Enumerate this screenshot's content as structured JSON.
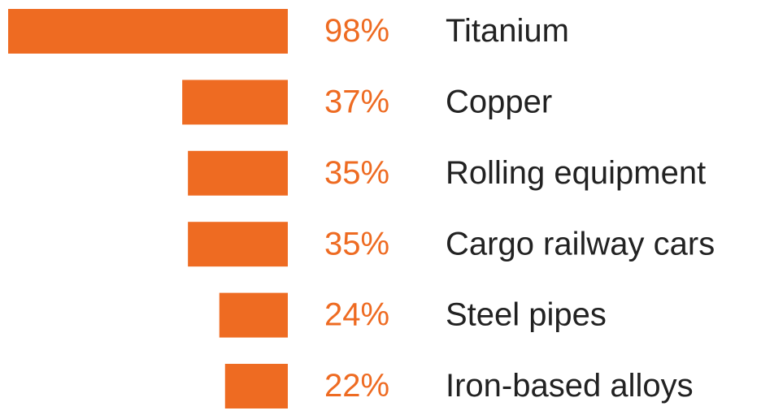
{
  "chart_data": {
    "type": "bar",
    "orientation": "horizontal",
    "categories": [
      "Titanium",
      "Copper",
      "Rolling equipment",
      "Cargo railway cars",
      "Steel pipes",
      "Iron-based alloys"
    ],
    "values": [
      98,
      37,
      35,
      35,
      24,
      22
    ],
    "value_labels": [
      "98%",
      "37%",
      "35%",
      "35%",
      "24%",
      "22%"
    ],
    "color": "#ee6b22"
  }
}
